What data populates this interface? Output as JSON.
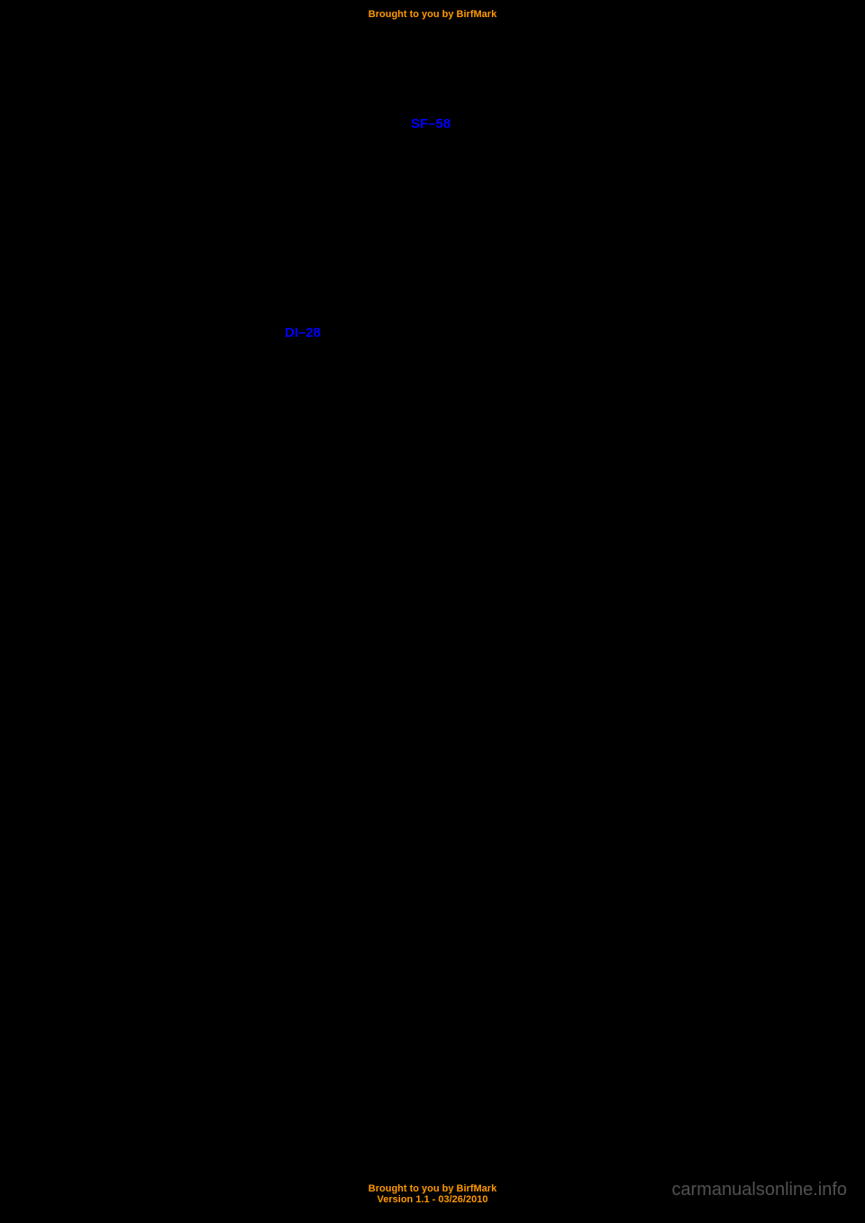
{
  "header": {
    "brought_to_you": "Brought to you by BirfMark"
  },
  "links": {
    "ref1": "SF–58",
    "ref2": "DI–28"
  },
  "footer": {
    "brought_to_you": "Brought to you by BirfMark",
    "version": "Version 1.1 - 03/26/2010"
  },
  "watermark": "carmanualsonline.info",
  "colors": {
    "background": "#000000",
    "orange_text": "#ff9900",
    "link_blue": "#0000ff",
    "watermark_color": "rgba(200, 200, 200, 0.4)"
  }
}
